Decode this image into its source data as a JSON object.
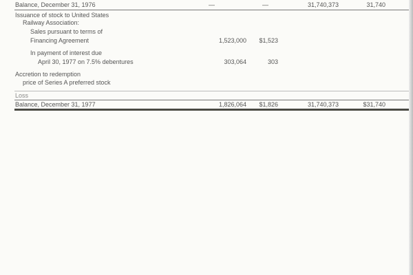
{
  "rows": [
    {
      "label": "Balance, December 31, 1976",
      "c1": "—",
      "c2": "—",
      "c3": "31,740,373",
      "c4": "31,740"
    },
    {
      "label": "Issuance of stock to United States"
    },
    {
      "label": "Railway Association:"
    },
    {
      "label": "Sales pursuant to terms of"
    },
    {
      "label": "Financing Agreement",
      "c1": "1,523,000",
      "c2": "$1,523"
    },
    {
      "label": "In payment of interest due"
    },
    {
      "label": "April 30, 1977 on 7.5% debentures",
      "c1": "303,064",
      "c2": "303"
    },
    {
      "label": "Accretion to redemption"
    },
    {
      "label": "price of Series A preferred stock"
    },
    {
      "label": "Loss"
    },
    {
      "label": "Balance, December 31, 1977",
      "c1": "1,826,064",
      "c2": "$1,826",
      "c3": "31,740,373",
      "c4": "$31,740"
    }
  ]
}
